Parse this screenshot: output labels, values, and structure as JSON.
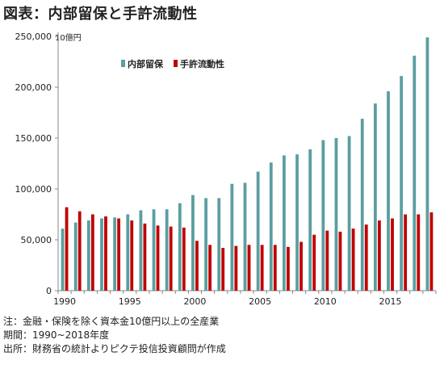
{
  "title": "図表：内部留保と手許流動性",
  "unit_label": "10億円",
  "colors": {
    "retained": "#5b9ea0",
    "liquidity": "#c00000",
    "axis": "#888888",
    "text": "#222222"
  },
  "chart_data": {
    "type": "bar",
    "title": "図表：内部留保と手許流動性",
    "xlabel": "",
    "ylabel": "10億円",
    "ylim": [
      0,
      250000
    ],
    "yticks": [
      0,
      50000,
      100000,
      150000,
      200000,
      250000
    ],
    "ytick_labels": [
      "0",
      "50,000",
      "100,000",
      "150,000",
      "200,000",
      "250,000"
    ],
    "xtick_labels": [
      "1990",
      "1995",
      "2000",
      "2005",
      "2010",
      "2015"
    ],
    "grid": false,
    "legend_position": "top-center",
    "categories": [
      "1990",
      "1991",
      "1992",
      "1993",
      "1994",
      "1995",
      "1996",
      "1997",
      "1998",
      "1999",
      "2000",
      "2001",
      "2002",
      "2003",
      "2004",
      "2005",
      "2006",
      "2007",
      "2008",
      "2009",
      "2010",
      "2011",
      "2012",
      "2013",
      "2014",
      "2015",
      "2016",
      "2017",
      "2018"
    ],
    "series": [
      {
        "name": "内部留保",
        "color": "#5b9ea0",
        "values": [
          61000,
          67000,
          69000,
          71000,
          72000,
          75000,
          79000,
          80000,
          80000,
          86000,
          94000,
          91000,
          91000,
          105000,
          106000,
          117000,
          126000,
          133000,
          134000,
          139000,
          148000,
          150000,
          152000,
          169000,
          184000,
          196000,
          211000,
          231000,
          249000
        ]
      },
      {
        "name": "手許流動性",
        "color": "#c00000",
        "values": [
          82000,
          78000,
          75000,
          73000,
          71000,
          69000,
          66000,
          64000,
          63000,
          62000,
          49000,
          45000,
          42000,
          44000,
          45000,
          45000,
          45000,
          43000,
          48000,
          55000,
          59000,
          58000,
          61000,
          65000,
          69000,
          71000,
          75000,
          75000,
          77000
        ]
      }
    ]
  },
  "notes": [
    "注：金融・保険を除く資本金10億円以上の全産業",
    "期間：1990~2018年度",
    "出所：財務省の統計よりピクテ投信投資顧問が作成"
  ]
}
